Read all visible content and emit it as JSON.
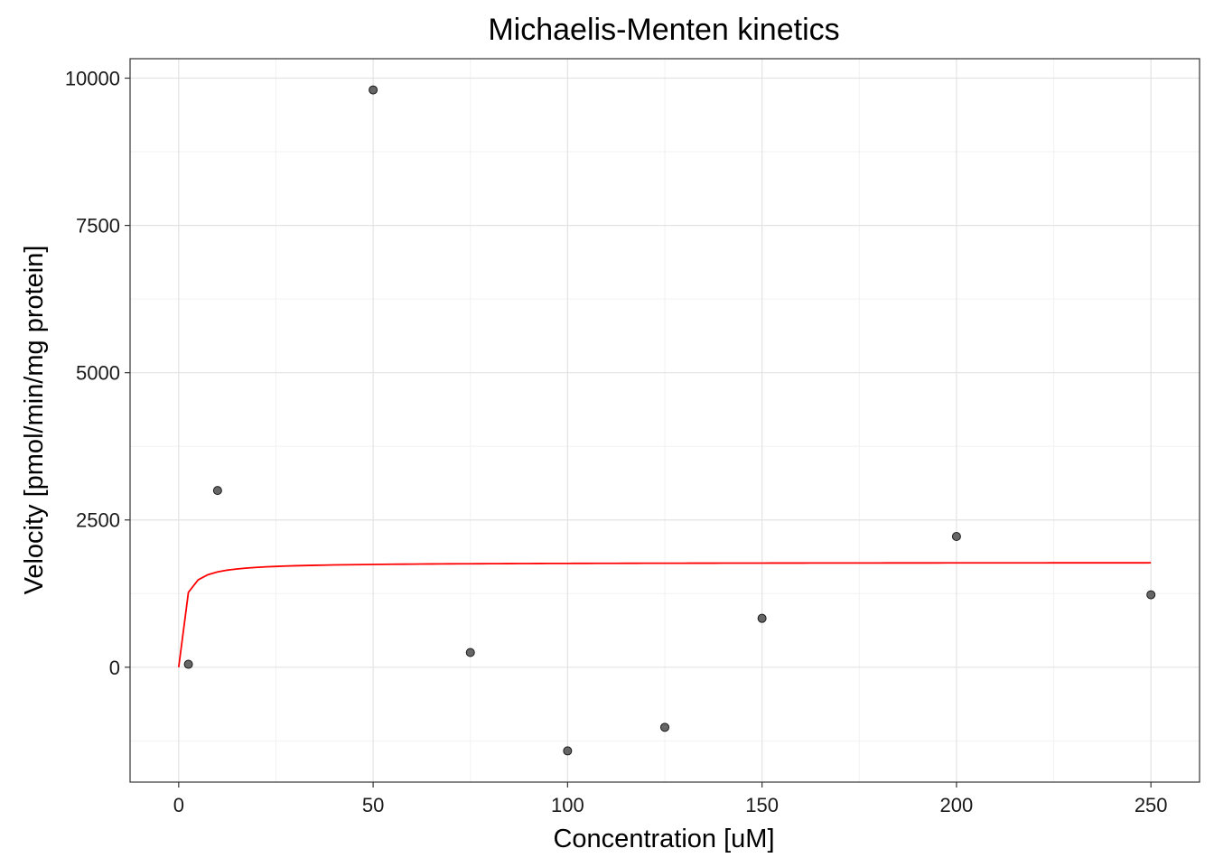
{
  "chart_data": {
    "type": "scatter",
    "title": "Michaelis-Menten kinetics",
    "xlabel": "Concentration [uM]",
    "ylabel": "Velocity [pmol/min/mg protein]",
    "xlim": [
      -12.5,
      262.5
    ],
    "ylim": [
      -1950,
      10330
    ],
    "x_ticks": [
      0,
      50,
      100,
      150,
      200,
      250
    ],
    "y_ticks": [
      0,
      2500,
      5000,
      7500,
      10000
    ],
    "x_tick_labels": [
      "0",
      "50",
      "100",
      "150",
      "200",
      "250"
    ],
    "y_tick_labels": [
      "0",
      "2500",
      "5000",
      "7500",
      "10000"
    ],
    "grid": true,
    "series": [
      {
        "type": "scatter",
        "color": "#666666",
        "points": [
          {
            "x": 2.5,
            "y": 50
          },
          {
            "x": 10,
            "y": 3000
          },
          {
            "x": 50,
            "y": 9800
          },
          {
            "x": 75,
            "y": 250
          },
          {
            "x": 100,
            "y": -1420
          },
          {
            "x": 125,
            "y": -1020
          },
          {
            "x": 150,
            "y": 830
          },
          {
            "x": 200,
            "y": 2220
          },
          {
            "x": 250,
            "y": 1230
          }
        ]
      },
      {
        "type": "line",
        "color": "#ff0000",
        "fit": {
          "model": "michaelis-menten",
          "vmax": 1780,
          "km": 1.0
        },
        "x_range": [
          0,
          250
        ]
      }
    ]
  }
}
